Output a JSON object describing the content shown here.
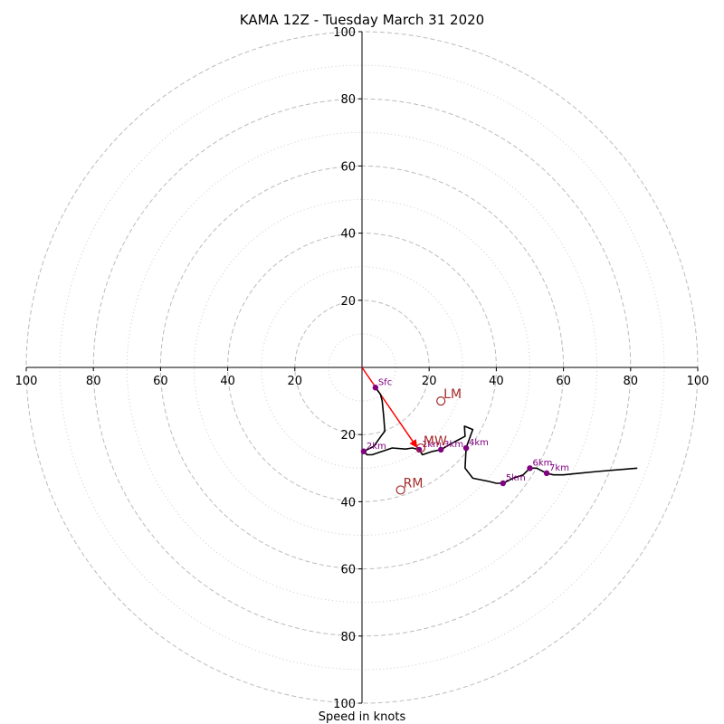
{
  "chart_data": {
    "type": "hodograph",
    "title": "KAMA 12Z - Tuesday March 31 2020",
    "xlabel": "Speed in knots",
    "radius_max": 100,
    "ring_major": [
      20,
      40,
      60,
      80,
      100
    ],
    "ring_minor": [
      10,
      30,
      50,
      70,
      90
    ],
    "x_ticks": [
      {
        "label": "100",
        "v": -100
      },
      {
        "label": "80",
        "v": -80
      },
      {
        "label": "60",
        "v": -60
      },
      {
        "label": "40",
        "v": -40
      },
      {
        "label": "20",
        "v": -20
      },
      {
        "label": "20",
        "v": 20
      },
      {
        "label": "40",
        "v": 40
      },
      {
        "label": "60",
        "v": 60
      },
      {
        "label": "80",
        "v": 80
      },
      {
        "label": "100",
        "v": 100
      }
    ],
    "y_ticks": [
      {
        "label": "100",
        "v": 100
      },
      {
        "label": "80",
        "v": 80
      },
      {
        "label": "60",
        "v": 60
      },
      {
        "label": "40",
        "v": 40
      },
      {
        "label": "20",
        "v": 20
      },
      {
        "label": "20",
        "v": -20
      },
      {
        "label": "40",
        "v": -40
      },
      {
        "label": "60",
        "v": -60
      },
      {
        "label": "80",
        "v": -80
      },
      {
        "label": "100",
        "v": -100
      }
    ],
    "trace": [
      [
        4,
        -6
      ],
      [
        5.5,
        -8
      ],
      [
        6,
        -10
      ],
      [
        6.5,
        -15
      ],
      [
        6.8,
        -19
      ],
      [
        6,
        -20
      ],
      [
        3.5,
        -23.5
      ],
      [
        0.5,
        -25
      ],
      [
        1.5,
        -26
      ],
      [
        3,
        -26
      ],
      [
        6,
        -25
      ],
      [
        9,
        -24
      ],
      [
        13,
        -24.3
      ],
      [
        15,
        -24
      ],
      [
        17,
        -24.5
      ],
      [
        18,
        -26
      ],
      [
        21,
        -25
      ],
      [
        23.5,
        -24.5
      ],
      [
        26,
        -23
      ],
      [
        30.7,
        -20.5
      ],
      [
        30.5,
        -17.5
      ],
      [
        33,
        -18.5
      ],
      [
        31,
        -24
      ],
      [
        30.7,
        -30
      ],
      [
        33,
        -33
      ],
      [
        38,
        -34
      ],
      [
        40,
        -34.5
      ],
      [
        42,
        -34.5
      ],
      [
        45,
        -33
      ],
      [
        48,
        -32
      ],
      [
        50,
        -30
      ],
      [
        52,
        -30
      ],
      [
        55,
        -31.5
      ],
      [
        57,
        -32
      ],
      [
        60,
        -32
      ],
      [
        70,
        -31
      ],
      [
        82,
        -30
      ]
    ],
    "heights": [
      {
        "label": "Sfc",
        "u": 4,
        "v": -6
      },
      {
        "label": "1km",
        "u": 17,
        "v": -24.5
      },
      {
        "label": "2km",
        "u": 0.5,
        "v": -25
      },
      {
        "label": "3km",
        "u": 23.5,
        "v": -24.5
      },
      {
        "label": "4km",
        "u": 31,
        "v": -24
      },
      {
        "label": "5km",
        "u": 42,
        "v": -34.5
      },
      {
        "label": "6km",
        "u": 50,
        "v": -30
      },
      {
        "label": "7km",
        "u": 55,
        "v": -31.5
      }
    ],
    "shear_vector": {
      "from": [
        0,
        0
      ],
      "to": [
        16.5,
        -24
      ]
    },
    "motions": [
      {
        "label": "LM",
        "u": 23.5,
        "v": -10
      },
      {
        "label": "RM",
        "u": 11.5,
        "v": -36.5
      },
      {
        "label": "MW",
        "u": 17.5,
        "v": -24
      }
    ],
    "colors": {
      "trace": "#000000",
      "heights": "#800080",
      "motions": "#a52a2a",
      "shear": "#ff0000",
      "rings": "#bbbbbb"
    }
  }
}
